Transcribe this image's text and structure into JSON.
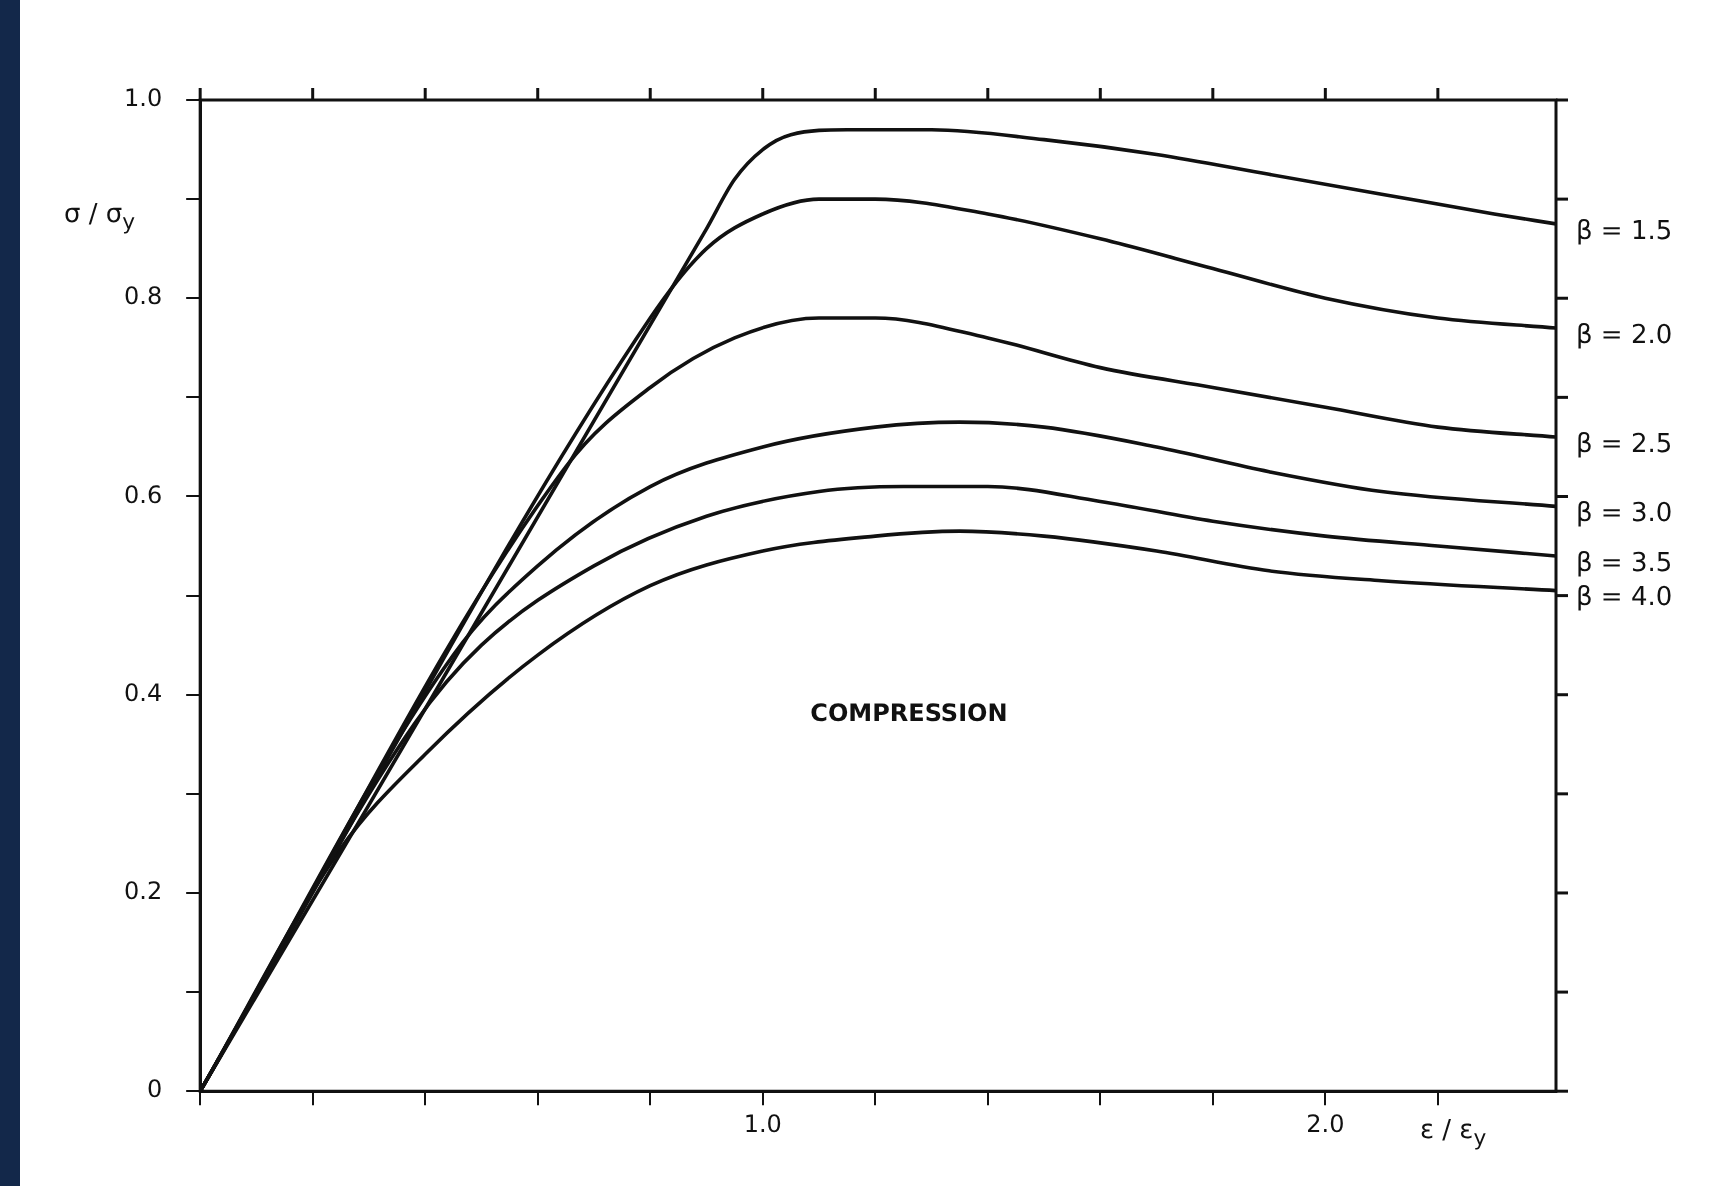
{
  "chart_data": {
    "type": "line",
    "xlabel": "ε / ε$_{y}$",
    "ylabel": "σ / σ$_{y}$",
    "annotations": [
      "COMPRESSION"
    ],
    "xlim": [
      0,
      2.41
    ],
    "ylim": [
      0,
      1.0
    ],
    "xticks": [
      {
        "value": 0,
        "label": null
      },
      {
        "value": 0.2,
        "label": null
      },
      {
        "value": 0.4,
        "label": null
      },
      {
        "value": 0.6,
        "label": null
      },
      {
        "value": 0.8,
        "label": null
      },
      {
        "value": 1.0,
        "label": "1.0"
      },
      {
        "value": 1.2,
        "label": null
      },
      {
        "value": 1.4,
        "label": null
      },
      {
        "value": 1.6,
        "label": null
      },
      {
        "value": 1.8,
        "label": null
      },
      {
        "value": 2.0,
        "label": "2.0"
      },
      {
        "value": 2.2,
        "label": null
      }
    ],
    "yticks": [
      0,
      {
        "value": 0.1,
        "label": null
      },
      0.2,
      {
        "value": 0.3,
        "label": null
      },
      0.4,
      {
        "value": 0.5,
        "label": null
      },
      0.6,
      {
        "value": 0.7,
        "label": null
      },
      0.8,
      {
        "value": 0.9,
        "label": null
      },
      {
        "value": 1.0,
        "label": "1.0"
      }
    ],
    "grid": false,
    "legend": "right",
    "marker": "none",
    "line_style": "solid",
    "series": [
      {
        "name": "β = 1.5",
        "color": "#111111",
        "x": [
          0,
          0.9,
          0.95,
          1.0,
          1.05,
          1.15,
          1.3,
          1.5,
          1.7,
          1.9,
          2.1,
          2.3,
          2.41
        ],
        "values": [
          0,
          0.87,
          0.92,
          0.95,
          0.965,
          0.97,
          0.97,
          0.96,
          0.945,
          0.925,
          0.905,
          0.885,
          0.875
        ]
      },
      {
        "name": "β = 2.0",
        "color": "#111111",
        "x": [
          0,
          0.8,
          0.9,
          1.0,
          1.1,
          1.2,
          1.4,
          1.6,
          1.8,
          2.0,
          2.2,
          2.41
        ],
        "values": [
          0,
          0.78,
          0.85,
          0.885,
          0.9,
          0.9,
          0.885,
          0.86,
          0.83,
          0.8,
          0.78,
          0.77
        ]
      },
      {
        "name": "β = 2.5",
        "color": "#111111",
        "x": [
          0,
          0.65,
          0.8,
          0.95,
          1.1,
          1.2,
          1.4,
          1.6,
          1.8,
          2.0,
          2.2,
          2.41
        ],
        "values": [
          0,
          0.63,
          0.71,
          0.76,
          0.78,
          0.78,
          0.76,
          0.73,
          0.71,
          0.69,
          0.67,
          0.66
        ]
      },
      {
        "name": "β = 3.0",
        "color": "#111111",
        "x": [
          0,
          0.45,
          0.6,
          0.8,
          1.0,
          1.2,
          1.35,
          1.5,
          1.7,
          1.9,
          2.1,
          2.41
        ],
        "values": [
          0,
          0.44,
          0.53,
          0.61,
          0.65,
          0.67,
          0.675,
          0.67,
          0.65,
          0.625,
          0.605,
          0.59
        ]
      },
      {
        "name": "β = 3.5",
        "color": "#111111",
        "x": [
          0,
          0.38,
          0.5,
          0.7,
          0.9,
          1.1,
          1.25,
          1.4,
          1.6,
          1.8,
          2.0,
          2.2,
          2.41
        ],
        "values": [
          0,
          0.37,
          0.45,
          0.53,
          0.58,
          0.605,
          0.61,
          0.61,
          0.595,
          0.575,
          0.56,
          0.55,
          0.54
        ]
      },
      {
        "name": "β = 4.0",
        "color": "#111111",
        "x": [
          0,
          0.25,
          0.4,
          0.6,
          0.8,
          1.0,
          1.2,
          1.35,
          1.5,
          1.7,
          1.9,
          2.1,
          2.41
        ],
        "values": [
          0,
          0.245,
          0.34,
          0.44,
          0.51,
          0.545,
          0.56,
          0.565,
          0.56,
          0.545,
          0.525,
          0.515,
          0.505
        ]
      }
    ]
  }
}
